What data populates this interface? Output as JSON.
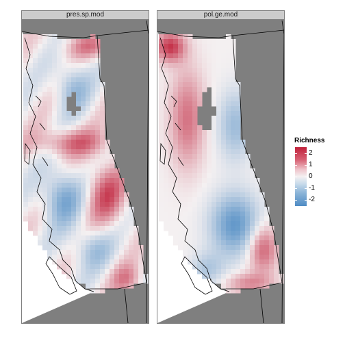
{
  "panels": [
    {
      "title": "pres.sp.mod",
      "pattern": "species"
    },
    {
      "title": "pol.ge.mod",
      "pattern": "genetic"
    }
  ],
  "legend": {
    "title": "Richness",
    "ticks": [
      "2",
      "1",
      "0",
      "-1",
      "-2"
    ],
    "tick_values": [
      2,
      1,
      0,
      -1,
      -2
    ],
    "range": [
      -2.5,
      2.5
    ],
    "colors": {
      "high": "#c0203a",
      "mid": "#f4f0f1",
      "low": "#4f8cc4"
    }
  },
  "colors": {
    "background": "#7f7f7f",
    "ocean": "#ffffff",
    "border": "#000000",
    "strip": "#cccccc"
  }
}
